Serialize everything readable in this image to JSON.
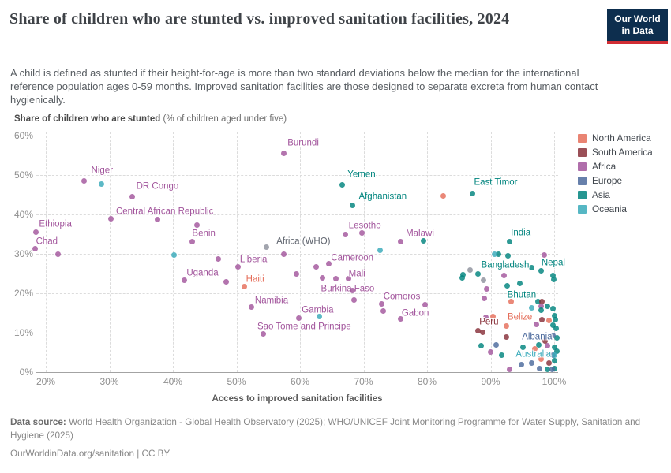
{
  "header": {
    "title": "Share of children who are stunted vs. improved sanitation facilities, 2024",
    "subtitle": "A child is defined as stunted if their height-for-age is more than two standard deviations below the median for the international reference population ages 0-59 months. Improved sanitation facilities are those designed to separate excreta from human contact hygienically.",
    "logo_line1": "Our World",
    "logo_line2": "in Data"
  },
  "chart": {
    "y_axis_title_bold": "Share of children who are stunted",
    "y_axis_title_rest": " (% of children aged under five)",
    "x_axis_title": "Access to improved sanitation facilities",
    "x_ticks": [
      {
        "value": 20,
        "label": "20%"
      },
      {
        "value": 30,
        "label": "30%"
      },
      {
        "value": 40,
        "label": "40%"
      },
      {
        "value": 50,
        "label": "50%"
      },
      {
        "value": 60,
        "label": "60%"
      },
      {
        "value": 70,
        "label": "70%"
      },
      {
        "value": 80,
        "label": "80%"
      },
      {
        "value": 90,
        "label": "90%"
      },
      {
        "value": 100,
        "label": "100%"
      }
    ],
    "y_ticks": [
      {
        "value": 0,
        "label": "0%"
      },
      {
        "value": 10,
        "label": "10%"
      },
      {
        "value": 20,
        "label": "20%"
      },
      {
        "value": 30,
        "label": "30%"
      },
      {
        "value": 40,
        "label": "40%"
      },
      {
        "value": 50,
        "label": "50%"
      },
      {
        "value": 60,
        "label": "60%"
      }
    ]
  },
  "legend": {
    "items": [
      {
        "id": "north_america",
        "label": "North America",
        "color": "#e56e5a"
      },
      {
        "id": "south_america",
        "label": "South America",
        "color": "#883039"
      },
      {
        "id": "africa",
        "label": "Africa",
        "color": "#a2559c"
      },
      {
        "id": "europe",
        "label": "Europe",
        "color": "#4c6a9c"
      },
      {
        "id": "asia",
        "label": "Asia",
        "color": "#00847e"
      },
      {
        "id": "oceania",
        "label": "Oceania",
        "color": "#38aaba"
      }
    ]
  },
  "footer": {
    "data_source_label": "Data source:",
    "data_source_text": "World Health Organization - Global Health Observatory (2025); WHO/UNICEF Joint Monitoring Programme for Water Supply, Sanitation and Hygiene (2025)",
    "attribution": "OurWorldinData.org/sanitation | CC BY"
  },
  "chart_data": {
    "type": "scatter",
    "title": "Share of children who are stunted vs. improved sanitation facilities, 2024",
    "xlabel": "Access to improved sanitation facilities",
    "ylabel": "Share of children who are stunted (% of children aged under five)",
    "xlim": [
      18,
      101
    ],
    "ylim": [
      0,
      60
    ],
    "grid": true,
    "legend_position": "right",
    "colors": {
      "north_america": "#e56e5a",
      "south_america": "#883039",
      "africa": "#a2559c",
      "europe": "#4c6a9c",
      "asia": "#00847e",
      "oceania": "#38aaba",
      "aggregate": "#8d919c",
      "aggregate_label": "#5f646e"
    },
    "series": [
      {
        "name": "africa",
        "points": [
          {
            "x": 57.4,
            "y": 55.6,
            "name": "Burundi",
            "lx": 25,
            "ly": -12
          },
          {
            "x": 26.0,
            "y": 48.6,
            "name": "Niger",
            "lx": 23,
            "ly": -12
          },
          {
            "x": 33.6,
            "y": 44.6,
            "name": "DR Congo",
            "lx": 32,
            "ly": -12
          },
          {
            "x": 37.6,
            "y": 38.8,
            "name": "Central African Republic",
            "lx": 9,
            "ly": -9
          },
          {
            "x": 18.4,
            "y": 35.6,
            "name": "Ethiopia",
            "lx": 25,
            "ly": -9
          },
          {
            "x": 18.3,
            "y": 31.4,
            "name": "Chad",
            "lx": 15,
            "ly": -8
          },
          {
            "x": 43.0,
            "y": 33.2,
            "name": "Benin",
            "lx": 15,
            "ly": -9
          },
          {
            "x": 41.8,
            "y": 23.4,
            "name": "Uganda",
            "lx": 23,
            "ly": -8
          },
          {
            "x": 50.2,
            "y": 26.8,
            "name": "Liberia",
            "lx": 20,
            "ly": -8
          },
          {
            "x": 52.3,
            "y": 16.6,
            "name": "Namibia",
            "lx": 26,
            "ly": -7
          },
          {
            "x": 59.8,
            "y": 13.8,
            "name": "Gambia",
            "lx": 24,
            "ly": -9
          },
          {
            "x": 54.2,
            "y": 9.8,
            "name": "Sao Tome and Principe",
            "lx": 52,
            "ly": -8
          },
          {
            "x": 67.1,
            "y": 35.0,
            "name": "Lesotho",
            "lx": 25,
            "ly": -10
          },
          {
            "x": 75.9,
            "y": 33.2,
            "name": "Malawi",
            "lx": 24,
            "ly": -9
          },
          {
            "x": 64.5,
            "y": 27.6,
            "name": "Cameroon",
            "lx": 30,
            "ly": -6
          },
          {
            "x": 67.6,
            "y": 23.8,
            "name": "Mali",
            "lx": 11,
            "ly": -5
          },
          {
            "x": 68.5,
            "y": 18.4,
            "name": "Burkina Faso",
            "lx": -8,
            "ly": -13
          },
          {
            "x": 72.8,
            "y": 17.4,
            "name": "Comoros",
            "lx": 26,
            "ly": -8
          },
          {
            "x": 75.8,
            "y": 13.6,
            "name": "Gabon",
            "lx": 19,
            "ly": -6
          },
          {
            "x": 30.2,
            "y": 39.0
          },
          {
            "x": 43.8,
            "y": 37.4
          },
          {
            "x": 21.9,
            "y": 30.0
          },
          {
            "x": 47.2,
            "y": 28.8
          },
          {
            "x": 57.5,
            "y": 30.0
          },
          {
            "x": 48.4,
            "y": 23.0
          },
          {
            "x": 59.4,
            "y": 25.0
          },
          {
            "x": 62.6,
            "y": 26.8
          },
          {
            "x": 63.6,
            "y": 24.0
          },
          {
            "x": 65.6,
            "y": 23.8
          },
          {
            "x": 68.2,
            "y": 20.8
          },
          {
            "x": 69.7,
            "y": 35.4
          },
          {
            "x": 73.1,
            "y": 15.6
          },
          {
            "x": 79.7,
            "y": 17.2
          },
          {
            "x": 98.5,
            "y": 29.8
          },
          {
            "x": 92.1,
            "y": 24.6
          },
          {
            "x": 89.4,
            "y": 21.2
          },
          {
            "x": 89.0,
            "y": 18.8
          },
          {
            "x": 89.2,
            "y": 14.0
          },
          {
            "x": 90.0,
            "y": 5.2
          },
          {
            "x": 93.0,
            "y": 0.8
          },
          {
            "x": 98.0,
            "y": 16.8
          },
          {
            "x": 97.2,
            "y": 12.2
          },
          {
            "x": 99.0,
            "y": 6.8
          },
          {
            "x": 98.6,
            "y": 4.8
          }
        ]
      },
      {
        "name": "asia",
        "points": [
          {
            "x": 66.7,
            "y": 47.6,
            "name": "Yemen",
            "lx": 24,
            "ly": -12
          },
          {
            "x": 68.3,
            "y": 42.4,
            "name": "Afghanistan",
            "lx": 38,
            "ly": -10
          },
          {
            "x": 87.2,
            "y": 45.4,
            "name": "East Timor",
            "lx": 29,
            "ly": -13
          },
          {
            "x": 93.0,
            "y": 33.2,
            "name": "India",
            "lx": 14,
            "ly": -10
          },
          {
            "x": 96.4,
            "y": 26.6,
            "name": "Bangladesh",
            "lx": -33,
            "ly": -2
          },
          {
            "x": 98.0,
            "y": 25.8,
            "name": "Nepal",
            "lx": 15,
            "ly": -9
          },
          {
            "x": 97.5,
            "y": 18.0,
            "name": "Bhutan",
            "lx": -21,
            "ly": -7
          },
          {
            "x": 79.4,
            "y": 33.4
          },
          {
            "x": 91.2,
            "y": 30.0
          },
          {
            "x": 92.7,
            "y": 29.6
          },
          {
            "x": 85.7,
            "y": 24.8
          },
          {
            "x": 85.5,
            "y": 24.0
          },
          {
            "x": 88.0,
            "y": 25.0
          },
          {
            "x": 99.8,
            "y": 24.6
          },
          {
            "x": 99.9,
            "y": 23.6
          },
          {
            "x": 92.6,
            "y": 22.0
          },
          {
            "x": 94.6,
            "y": 22.6
          },
          {
            "x": 97.9,
            "y": 15.8
          },
          {
            "x": 88.5,
            "y": 6.8
          },
          {
            "x": 91.7,
            "y": 4.4
          },
          {
            "x": 95.1,
            "y": 6.4
          },
          {
            "x": 99.0,
            "y": 16.8
          },
          {
            "x": 99.8,
            "y": 16.2
          },
          {
            "x": 100.0,
            "y": 14.4
          },
          {
            "x": 100.2,
            "y": 13.4
          },
          {
            "x": 99.8,
            "y": 12.0
          },
          {
            "x": 100.3,
            "y": 11.2
          },
          {
            "x": 100.4,
            "y": 8.8
          },
          {
            "x": 97.6,
            "y": 7.0
          },
          {
            "x": 100.0,
            "y": 6.4
          },
          {
            "x": 100.4,
            "y": 5.4
          },
          {
            "x": 100.1,
            "y": 3.0
          },
          {
            "x": 99.0,
            "y": 0.8
          },
          {
            "x": 100.1,
            "y": 1.0
          }
        ]
      },
      {
        "name": "north_america",
        "points": [
          {
            "x": 51.2,
            "y": 21.8,
            "name": "Haiti",
            "lx": 14,
            "ly": -8
          },
          {
            "x": 92.5,
            "y": 11.8,
            "name": "Belize",
            "lx": 17,
            "ly": -10
          },
          {
            "x": 82.5,
            "y": 44.8
          },
          {
            "x": 93.2,
            "y": 18.0
          },
          {
            "x": 90.4,
            "y": 14.2
          },
          {
            "x": 97.0,
            "y": 6.0
          },
          {
            "x": 99.2,
            "y": 13.2
          },
          {
            "x": 98.0,
            "y": 3.4
          }
        ]
      },
      {
        "name": "south_america",
        "points": [
          {
            "x": 88.0,
            "y": 10.6,
            "name": "Peru",
            "lx": 14,
            "ly": -10
          },
          {
            "x": 98.1,
            "y": 18.0
          },
          {
            "x": 88.7,
            "y": 10.2
          },
          {
            "x": 92.5,
            "y": 9.0
          },
          {
            "x": 98.6,
            "y": 8.0
          },
          {
            "x": 98.1,
            "y": 13.4
          },
          {
            "x": 99.2,
            "y": 2.4
          }
        ]
      },
      {
        "name": "europe",
        "points": [
          {
            "x": 99.8,
            "y": 9.4,
            "name": "Albania",
            "lx": -20,
            "ly": 3
          },
          {
            "x": 90.9,
            "y": 7.0
          },
          {
            "x": 94.9,
            "y": 2.0
          },
          {
            "x": 96.4,
            "y": 2.4
          },
          {
            "x": 99.8,
            "y": 4.4
          },
          {
            "x": 97.7,
            "y": 1.0
          },
          {
            "x": 99.7,
            "y": 0.8
          }
        ]
      },
      {
        "name": "oceania",
        "points": [
          {
            "x": 100.1,
            "y": 4.4,
            "name": "Australia",
            "lx": -27,
            "ly": 0
          },
          {
            "x": 28.8,
            "y": 47.8
          },
          {
            "x": 40.2,
            "y": 29.8
          },
          {
            "x": 72.6,
            "y": 31.0
          },
          {
            "x": 63.0,
            "y": 14.1
          },
          {
            "x": 90.6,
            "y": 30.0
          },
          {
            "x": 96.5,
            "y": 16.4
          }
        ]
      },
      {
        "name": "aggregate",
        "points": [
          {
            "x": 54.7,
            "y": 31.8,
            "name": "Africa (WHO)",
            "lx": 47,
            "ly": -6
          },
          {
            "x": 86.8,
            "y": 26.0
          },
          {
            "x": 88.9,
            "y": 23.4
          }
        ]
      }
    ]
  }
}
